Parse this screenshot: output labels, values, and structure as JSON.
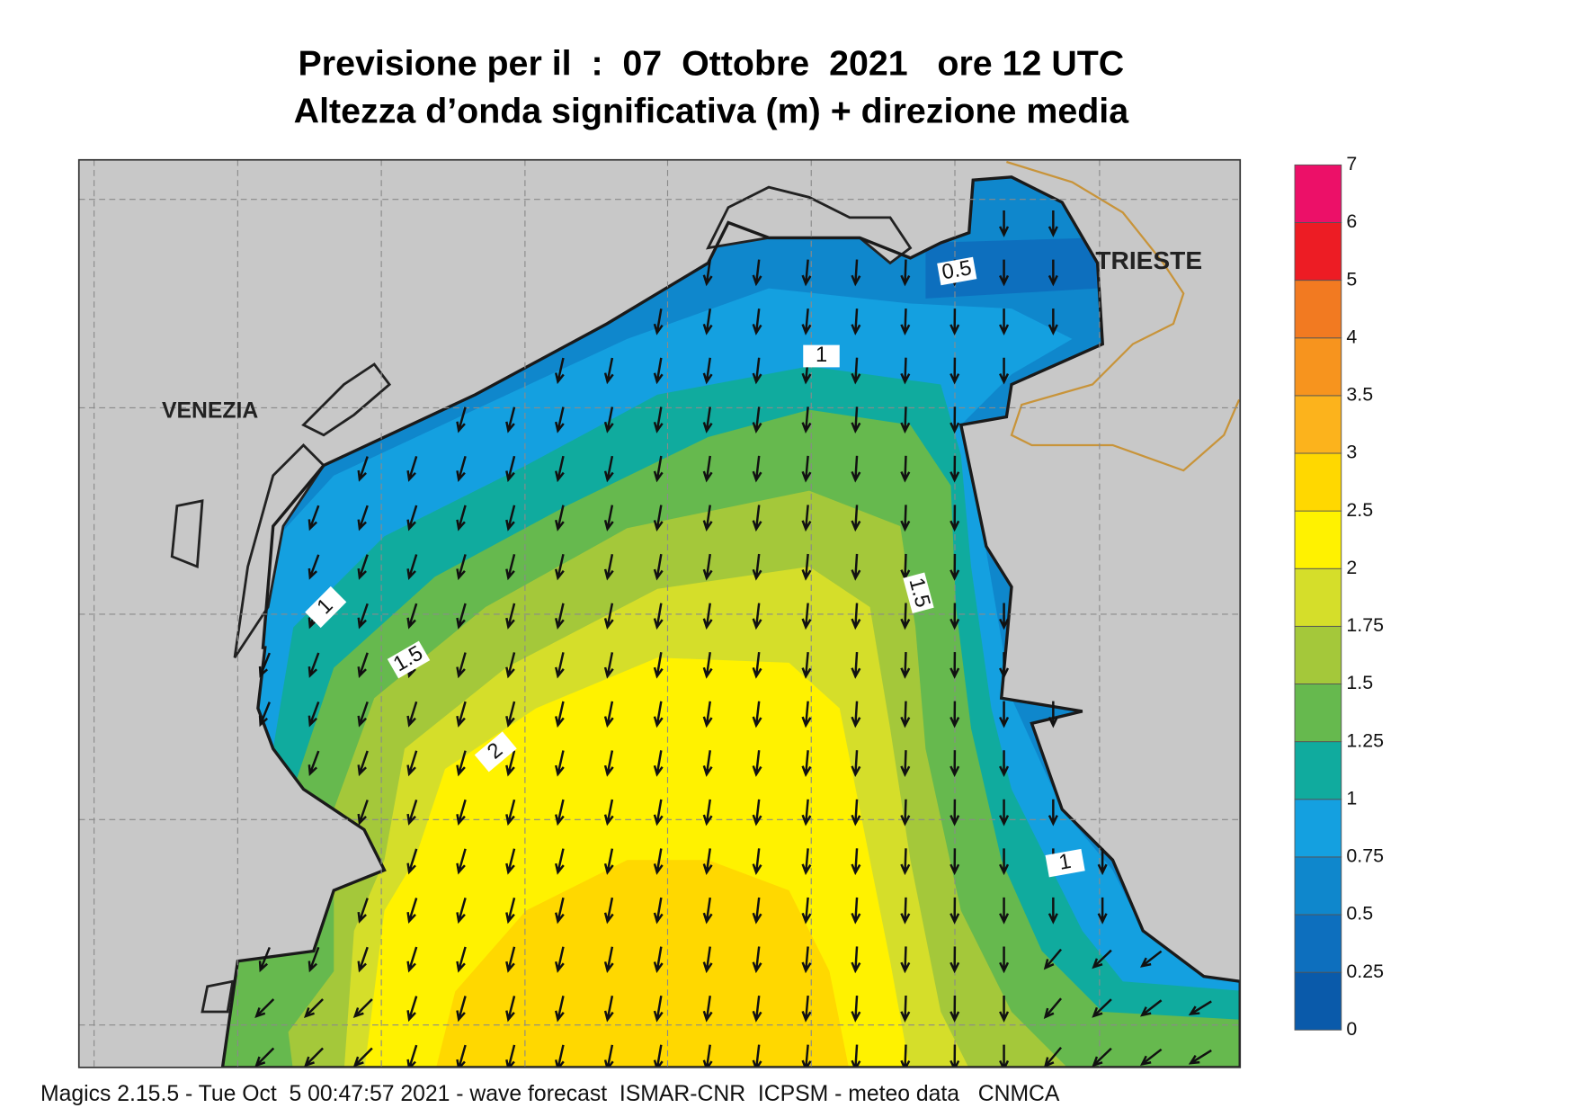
{
  "header": {
    "title": "Previsione per il  :  07  Ottobre  2021   ore 12 UTC",
    "subtitle": "Altezza d’onda significativa (m) + direzione media"
  },
  "map": {
    "cities": [
      "VENEZIA",
      "TRIESTE"
    ],
    "contour_labels": [
      0.5,
      1,
      1,
      1.5,
      1.5,
      2,
      1
    ]
  },
  "legend": {
    "levels": [
      0,
      0.25,
      0.5,
      0.75,
      1,
      1.25,
      1.5,
      1.75,
      2,
      2.5,
      3,
      3.5,
      4,
      5,
      6,
      7
    ],
    "colors": [
      "#0a5aaa",
      "#0d6fbe",
      "#0f87cc",
      "#14a0e0",
      "#10ab9e",
      "#66b94e",
      "#a4c83a",
      "#d5de2a",
      "#fff200",
      "#ffd800",
      "#fcb31c",
      "#f7941e",
      "#f27a21",
      "#ed1c24",
      "#ec1068"
    ]
  },
  "footer": "Magics 2.15.5 - Tue Oct  5 00:47:57 2021 - wave forecast  ISMAR-CNR  ICPSM - meteo data   CNMCA"
}
